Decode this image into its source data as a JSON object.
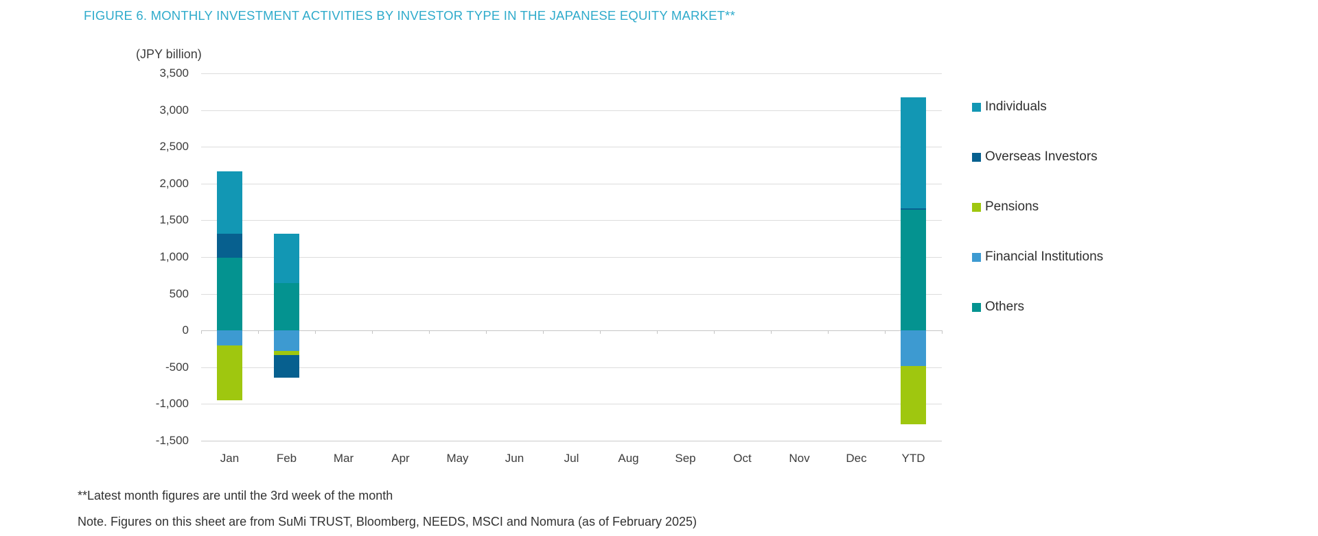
{
  "footnotes": {
    "line1": "**Latest month figures are until the 3rd week of the month",
    "line2": "Note. Figures on this sheet are from SuMi TRUST, Bloomberg, NEEDS, MSCI and Nomura (as of February 2025)"
  },
  "colors": {
    "title": "#2fabcb",
    "text": "#3c3c3c",
    "grid": "#dcdcdc",
    "axis": "#c4c4c4",
    "individuals": "#1297b4",
    "overseas_investors": "#07608f",
    "pensions": "#9fc70f",
    "financial_institutions": "#3d9ad1",
    "others": "#049390"
  },
  "chart_data": {
    "type": "bar",
    "stacked": true,
    "title": "FIGURE 6. MONTHLY INVESTMENT ACTIVITIES BY INVESTOR TYPE IN THE JAPANESE EQUITY MARKET**",
    "ylabel": "(JPY billion)",
    "xlabel": "",
    "ylim": [
      -1500,
      3500
    ],
    "grid": true,
    "legend_position": "right",
    "yticks": [
      {
        "value": 3500,
        "label": "3,500"
      },
      {
        "value": 3000,
        "label": "3,000"
      },
      {
        "value": 2500,
        "label": "2,500"
      },
      {
        "value": 2000,
        "label": "2,000"
      },
      {
        "value": 1500,
        "label": "1,500"
      },
      {
        "value": 1000,
        "label": "1,000"
      },
      {
        "value": 500,
        "label": "500"
      },
      {
        "value": 0,
        "label": "0"
      },
      {
        "value": -500,
        "label": "-500"
      },
      {
        "value": -1000,
        "label": "-1,000"
      },
      {
        "value": -1500,
        "label": "-1,500"
      }
    ],
    "categories": [
      "Jan",
      "Feb",
      "Mar",
      "Apr",
      "May",
      "Jun",
      "Jul",
      "Aug",
      "Sep",
      "Oct",
      "Nov",
      "Dec",
      "YTD"
    ],
    "series": [
      {
        "name": "Individuals",
        "color": "#1297b4",
        "values": [
          850,
          670,
          0,
          0,
          0,
          0,
          0,
          0,
          0,
          0,
          0,
          0,
          1510
        ]
      },
      {
        "name": "Overseas Investors",
        "color": "#07608f",
        "values": [
          330,
          -310,
          0,
          0,
          0,
          0,
          0,
          0,
          0,
          0,
          0,
          0,
          20
        ]
      },
      {
        "name": "Pensions",
        "color": "#9fc70f",
        "values": [
          -750,
          -50,
          0,
          0,
          0,
          0,
          0,
          0,
          0,
          0,
          0,
          0,
          -800
        ]
      },
      {
        "name": "Financial Institutions",
        "color": "#3d9ad1",
        "values": [
          -200,
          -280,
          0,
          0,
          0,
          0,
          0,
          0,
          0,
          0,
          0,
          0,
          -480
        ]
      },
      {
        "name": "Others",
        "color": "#049390",
        "values": [
          990,
          650,
          0,
          0,
          0,
          0,
          0,
          0,
          0,
          0,
          0,
          0,
          1640
        ]
      }
    ],
    "stack_order_positive": [
      "Others",
      "Overseas Investors",
      "Individuals"
    ],
    "stack_order_negative": [
      "Financial Institutions",
      "Pensions",
      "Overseas Investors"
    ]
  }
}
